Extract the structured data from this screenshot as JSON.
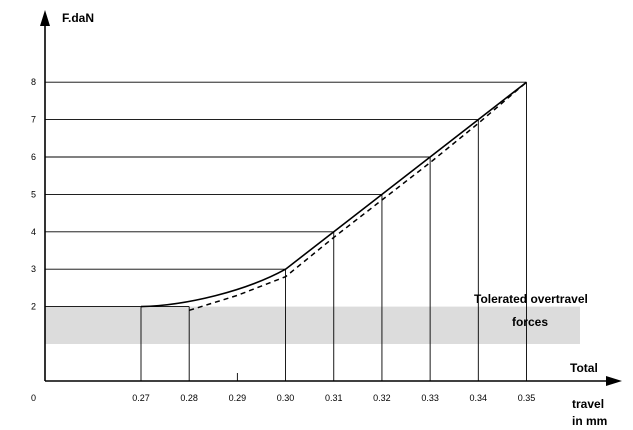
{
  "chart_data": {
    "type": "line",
    "ylabel": "F.daN",
    "xlabel": [
      "Total",
      "travel",
      "in mm"
    ],
    "origin_label": "0",
    "x_ticks": [
      "0.27",
      "0.28",
      "0.29",
      "0.30",
      "0.31",
      "0.32",
      "0.33",
      "0.34",
      "0.35"
    ],
    "y_ticks": [
      "2",
      "3",
      "4",
      "5",
      "6",
      "7",
      "8"
    ],
    "series": [
      {
        "style": "solid",
        "points": [
          [
            0.27,
            2.0
          ],
          [
            0.28,
            2.06
          ],
          [
            0.29,
            2.3
          ],
          [
            0.3,
            3.0
          ],
          [
            0.31,
            4.0
          ],
          [
            0.32,
            5.0
          ],
          [
            0.33,
            6.0
          ],
          [
            0.34,
            7.0
          ],
          [
            0.35,
            8.0
          ]
        ]
      },
      {
        "style": "dashed",
        "points": [
          [
            0.28,
            1.9
          ],
          [
            0.29,
            2.3
          ],
          [
            0.3,
            2.8
          ],
          [
            0.31,
            3.85
          ],
          [
            0.32,
            4.85
          ],
          [
            0.33,
            5.85
          ],
          [
            0.34,
            6.9
          ],
          [
            0.35,
            8.0
          ]
        ]
      }
    ],
    "band": {
      "y_from": 1.0,
      "y_to": 2.0,
      "color": "#dcdcdc"
    },
    "annotation": [
      "Tolerated overtravel",
      "forces"
    ],
    "grid": "horizontal lines at each y tick from axis to curve; vertical drops from curve at each x tick"
  }
}
